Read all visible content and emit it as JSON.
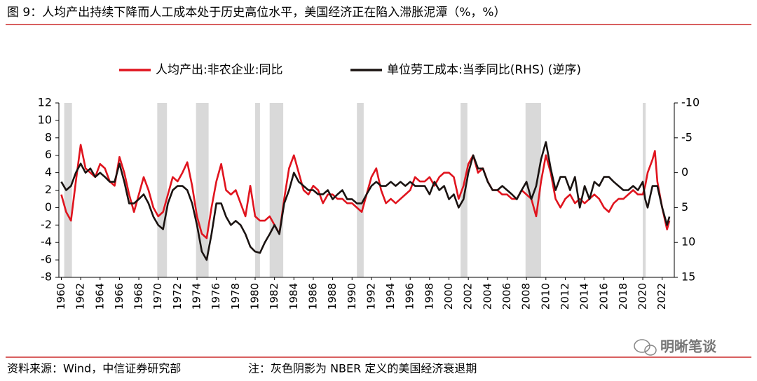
{
  "chart_data": {
    "type": "line",
    "title": "图 9：人均产出持续下降而人工成本处于历史高位水平，美国经济正在陷入滞胀泥潭（%，%）",
    "source": "资料来源：Wind，中信证券研究部",
    "note": "注：灰色阴影为 NBER 定义的美国经济衰退期",
    "watermark": "明晰笔谈",
    "xlim": [
      1959.75,
      2023.25
    ],
    "xticks": [
      1960,
      1962,
      1964,
      1966,
      1968,
      1970,
      1972,
      1974,
      1976,
      1978,
      1980,
      1982,
      1984,
      1986,
      1988,
      1990,
      1992,
      1994,
      1996,
      1998,
      2000,
      2002,
      2004,
      2006,
      2008,
      2010,
      2012,
      2014,
      2016,
      2018,
      2020,
      2022
    ],
    "ylim": [
      -8,
      12
    ],
    "yticks": [
      -8,
      -6,
      -4,
      -2,
      0,
      2,
      4,
      6,
      8,
      10,
      12
    ],
    "y2lim": [
      15,
      -10
    ],
    "y2ticks": [
      -10,
      -5,
      0,
      5,
      10,
      15
    ],
    "recessions": [
      [
        1960.3,
        1961.1
      ],
      [
        1969.9,
        1970.9
      ],
      [
        1973.9,
        1975.2
      ],
      [
        1980.0,
        1980.5
      ],
      [
        1981.5,
        1982.9
      ],
      [
        1990.5,
        1991.2
      ],
      [
        2001.2,
        2001.9
      ],
      [
        2007.9,
        2009.5
      ],
      [
        2020.0,
        2020.3
      ]
    ],
    "recession_color": "#d9d9d9",
    "legend": "top",
    "x": [
      1960,
      1960.5,
      1961,
      1961.5,
      1962,
      1962.5,
      1963,
      1963.5,
      1964,
      1964.5,
      1965,
      1965.5,
      1966,
      1966.5,
      1967,
      1967.5,
      1968,
      1968.5,
      1969,
      1969.5,
      1970,
      1970.5,
      1971,
      1971.5,
      1972,
      1972.5,
      1973,
      1973.5,
      1974,
      1974.5,
      1975,
      1975.5,
      1976,
      1976.5,
      1977,
      1977.5,
      1978,
      1978.5,
      1979,
      1979.5,
      1980,
      1980.5,
      1981,
      1981.5,
      1982,
      1982.5,
      1983,
      1983.5,
      1984,
      1984.5,
      1985,
      1985.5,
      1986,
      1986.5,
      1987,
      1987.5,
      1988,
      1988.5,
      1989,
      1989.5,
      1990,
      1990.5,
      1991,
      1991.5,
      1992,
      1992.5,
      1993,
      1993.5,
      1994,
      1994.5,
      1995,
      1995.5,
      1996,
      1996.5,
      1997,
      1997.5,
      1998,
      1998.5,
      1999,
      1999.5,
      2000,
      2000.5,
      2001,
      2001.5,
      2002,
      2002.5,
      2003,
      2003.5,
      2004,
      2004.5,
      2005,
      2005.5,
      2006,
      2006.5,
      2007,
      2007.5,
      2008,
      2008.5,
      2009,
      2009.5,
      2010,
      2010.5,
      2011,
      2011.5,
      2012,
      2012.5,
      2013,
      2013.5,
      2014,
      2014.5,
      2015,
      2015.5,
      2016,
      2016.5,
      2017,
      2017.5,
      2018,
      2018.5,
      2019,
      2019.5,
      2020,
      2020.25,
      2020.5,
      2021,
      2021.25,
      2021.5,
      2022,
      2022.5,
      2022.75
    ],
    "series": [
      {
        "name": "人均产出:非农企业:同比",
        "color": "#e0141e",
        "axis": "y",
        "values": [
          1.5,
          -0.5,
          -1.5,
          3,
          7.2,
          4.5,
          4,
          3.5,
          5,
          4.5,
          3,
          2.5,
          5.8,
          4,
          1.5,
          -0.5,
          1.5,
          3.5,
          2,
          0,
          -1,
          -0.5,
          1.5,
          3.5,
          3,
          4,
          5.2,
          2.5,
          -1,
          -3,
          -3.5,
          0,
          3,
          5,
          2,
          1.5,
          2,
          0.5,
          -1,
          2.5,
          -1,
          -1.5,
          -1.5,
          -1,
          -2,
          -3,
          1,
          4.5,
          6,
          4,
          2,
          1.5,
          2.5,
          2,
          0.5,
          1.5,
          1.5,
          1,
          1,
          0.5,
          0.5,
          0,
          -0.5,
          1.5,
          3.5,
          4.5,
          2,
          0.5,
          1,
          0.5,
          1,
          1.5,
          2,
          3.5,
          3,
          3,
          3.5,
          2.5,
          3.5,
          4,
          4,
          3.5,
          1,
          2.5,
          5,
          6,
          4,
          4.5,
          3,
          2,
          2,
          1.5,
          1.5,
          1,
          1,
          2,
          1.5,
          1,
          -1,
          3,
          6,
          4,
          1,
          0,
          1,
          1.5,
          0.5,
          1,
          0.5,
          1,
          1.5,
          1,
          0,
          -0.5,
          0.5,
          1,
          1,
          1.5,
          2,
          1.5,
          1.5,
          2.5,
          4,
          5.5,
          6.5,
          3,
          0,
          -2.5,
          -1.5
        ]
      },
      {
        "name": "单位劳工成本:当季同比(RHS) (逆序)",
        "color": "#1a1311",
        "axis": "y2",
        "values": [
          1.3,
          2.5,
          1.9,
          0,
          -1.3,
          0,
          -0.6,
          0.6,
          0,
          0.6,
          1.3,
          1.3,
          -1.3,
          1.3,
          4.4,
          4.4,
          3.8,
          3.1,
          4.4,
          6.3,
          7.5,
          8.1,
          4.4,
          2.5,
          1.9,
          1.9,
          2.5,
          4.4,
          7.5,
          11.3,
          12.5,
          8.8,
          4.4,
          4.4,
          6.3,
          7.5,
          6.9,
          7.5,
          8.8,
          10.6,
          11.3,
          11.5,
          10,
          8.8,
          7.5,
          8.8,
          4.4,
          2.5,
          0,
          1.3,
          1.9,
          2.5,
          2.5,
          3.1,
          3.1,
          2.5,
          3.8,
          3.1,
          2.5,
          3.8,
          3.8,
          4.4,
          4.4,
          3.1,
          1.9,
          1.3,
          1.9,
          1.9,
          1.3,
          1.9,
          1.3,
          1.9,
          1.3,
          1.9,
          1.9,
          1.9,
          3.1,
          1.3,
          2.5,
          1.9,
          3.8,
          3.1,
          5,
          3.8,
          0,
          -2.5,
          -0.6,
          -0.6,
          1.3,
          2.5,
          2.5,
          1.9,
          2.5,
          3.1,
          3.8,
          2.5,
          1.3,
          3.8,
          1.9,
          -1.9,
          -4.4,
          -0.6,
          2.5,
          0.6,
          0.6,
          2.5,
          0.6,
          5,
          1.9,
          3.8,
          1.3,
          1.9,
          0.6,
          0.6,
          1.3,
          1.9,
          2.5,
          2.5,
          1.9,
          2.5,
          1.3,
          3.8,
          5,
          1.9,
          1.9,
          1.9,
          5,
          7.5,
          6.3
        ]
      }
    ]
  }
}
